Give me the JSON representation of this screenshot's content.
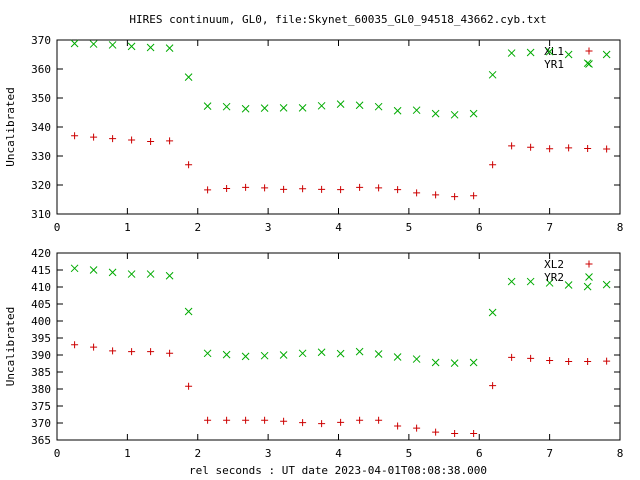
{
  "title": "HIRES continuum, GL0, file:Skynet_60035_GL0_94518_43662.cyb.txt",
  "xlabel": "rel seconds : UT date 2023-04-01T08:08:38.000",
  "colors": {
    "series_a": "#cc0000",
    "series_b": "#00aa00",
    "axis": "#000000"
  },
  "chart_data": [
    {
      "type": "scatter",
      "title": "HIRES continuum, GL0, file:Skynet_60035_GL0_94518_43662.cyb.txt",
      "xlabel": "",
      "ylabel": "Uncalibrated",
      "xlim": [
        0,
        8
      ],
      "ylim": [
        310,
        370
      ],
      "xticks": [
        "0",
        "1",
        "2",
        "3",
        "4",
        "5",
        "6",
        "7",
        "8"
      ],
      "yticks": [
        "310",
        "320",
        "330",
        "340",
        "350",
        "360",
        "370"
      ],
      "legend": "top-right",
      "grid": false,
      "series": [
        {
          "name": "XL1",
          "marker": "plus",
          "color": "#cc0000",
          "x": [
            0.25,
            0.52,
            0.79,
            1.06,
            1.33,
            1.6,
            1.87,
            2.14,
            2.41,
            2.68,
            2.95,
            3.22,
            3.49,
            3.76,
            4.03,
            4.3,
            4.57,
            4.84,
            5.11,
            5.38,
            5.65,
            5.92,
            6.19,
            6.46,
            6.73,
            7.0,
            7.27,
            7.54,
            7.81
          ],
          "y": [
            337.0,
            336.5,
            336.0,
            335.5,
            335.0,
            335.2,
            327.0,
            318.3,
            318.8,
            319.2,
            319.0,
            318.5,
            318.7,
            318.5,
            318.4,
            319.2,
            319.0,
            318.4,
            317.3,
            316.6,
            316.0,
            316.3,
            327.0,
            333.5,
            333.0,
            332.5,
            332.8,
            332.6,
            332.4
          ]
        },
        {
          "name": "YR1",
          "marker": "cross",
          "color": "#00aa00",
          "x": [
            0.25,
            0.52,
            0.79,
            1.06,
            1.33,
            1.6,
            1.87,
            2.14,
            2.41,
            2.68,
            2.95,
            3.22,
            3.49,
            3.76,
            4.03,
            4.3,
            4.57,
            4.84,
            5.11,
            5.38,
            5.65,
            5.92,
            6.19,
            6.46,
            6.73,
            7.0,
            7.27,
            7.54,
            7.81
          ],
          "y": [
            368.8,
            368.6,
            368.3,
            367.8,
            367.4,
            367.2,
            357.2,
            347.2,
            347.0,
            346.3,
            346.5,
            346.6,
            346.6,
            347.3,
            347.9,
            347.5,
            347.0,
            345.6,
            345.8,
            344.6,
            344.2,
            344.6,
            358.0,
            365.5,
            365.7,
            366.0,
            365.0,
            362.0,
            365.0
          ]
        }
      ]
    },
    {
      "type": "scatter",
      "title": "",
      "xlabel": "rel seconds : UT date 2023-04-01T08:08:38.000",
      "ylabel": "Uncalibrated",
      "xlim": [
        0,
        8
      ],
      "ylim": [
        365,
        420
      ],
      "xticks": [
        "0",
        "1",
        "2",
        "3",
        "4",
        "5",
        "6",
        "7",
        "8"
      ],
      "yticks": [
        "365",
        "370",
        "375",
        "380",
        "385",
        "390",
        "395",
        "400",
        "405",
        "410",
        "415",
        "420"
      ],
      "legend": "top-right",
      "grid": false,
      "series": [
        {
          "name": "XL2",
          "marker": "plus",
          "color": "#cc0000",
          "x": [
            0.25,
            0.52,
            0.79,
            1.06,
            1.33,
            1.6,
            1.87,
            2.14,
            2.41,
            2.68,
            2.95,
            3.22,
            3.49,
            3.76,
            4.03,
            4.3,
            4.57,
            4.84,
            5.11,
            5.38,
            5.65,
            5.92,
            6.19,
            6.46,
            6.73,
            7.0,
            7.27,
            7.54,
            7.81
          ],
          "y": [
            393.0,
            392.3,
            391.2,
            391.0,
            391.0,
            390.5,
            380.8,
            370.8,
            370.8,
            370.8,
            370.8,
            370.5,
            370.1,
            369.8,
            370.2,
            370.8,
            370.8,
            369.1,
            368.5,
            367.3,
            366.9,
            366.9,
            381.0,
            389.3,
            389.0,
            388.4,
            388.1,
            388.1,
            388.2
          ]
        },
        {
          "name": "YR2",
          "marker": "cross",
          "color": "#00aa00",
          "x": [
            0.25,
            0.52,
            0.79,
            1.06,
            1.33,
            1.6,
            1.87,
            2.14,
            2.41,
            2.68,
            2.95,
            3.22,
            3.49,
            3.76,
            4.03,
            4.3,
            4.57,
            4.84,
            5.11,
            5.38,
            5.65,
            5.92,
            6.19,
            6.46,
            6.73,
            7.0,
            7.27,
            7.54,
            7.81
          ],
          "y": [
            415.5,
            415.0,
            414.3,
            413.8,
            413.8,
            413.3,
            402.8,
            390.5,
            390.1,
            389.6,
            389.8,
            390.0,
            390.5,
            390.8,
            390.4,
            391.0,
            390.3,
            389.4,
            388.8,
            387.8,
            387.6,
            387.8,
            402.5,
            411.6,
            411.6,
            411.2,
            410.6,
            410.1,
            410.7
          ]
        }
      ]
    }
  ]
}
